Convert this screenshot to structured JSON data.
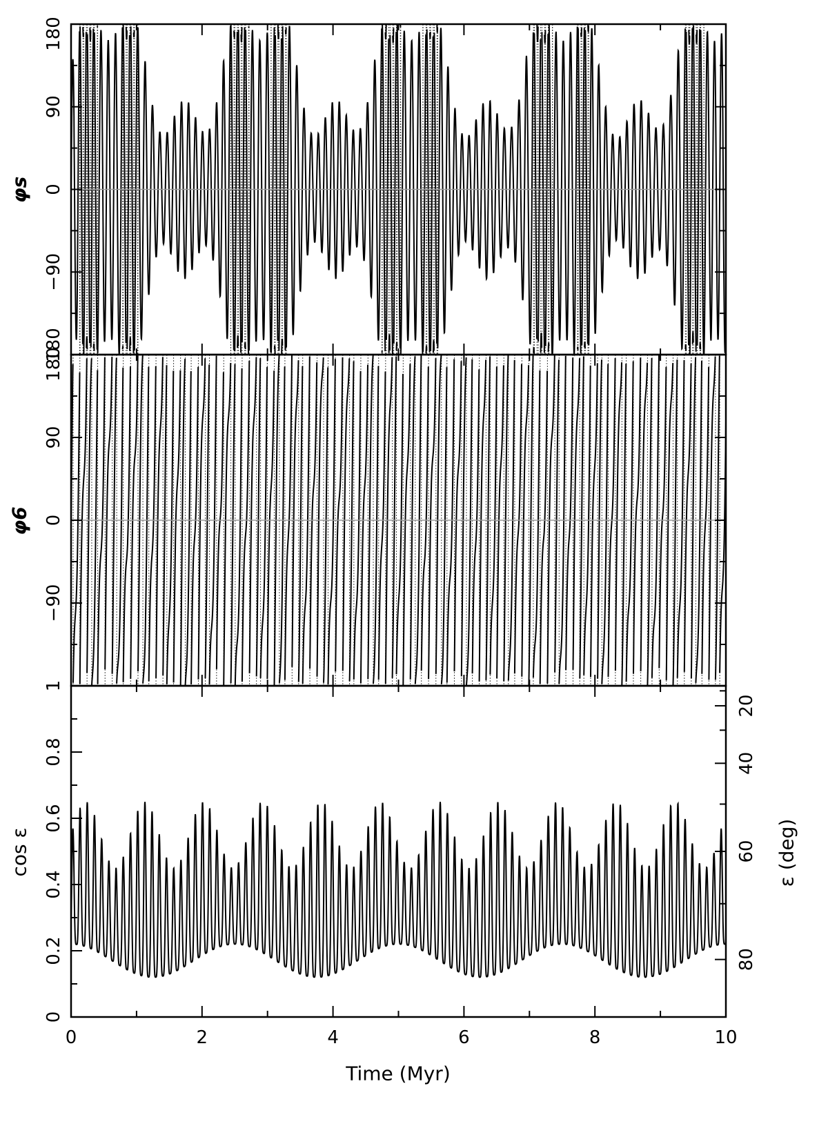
{
  "chart_data": [
    {
      "type": "line",
      "panel": "top",
      "ylabel": "φs",
      "xlim": [
        0,
        10
      ],
      "ylim": [
        -180,
        180
      ],
      "yticks": [
        {
          "value": 180,
          "label": "180"
        },
        {
          "value": 90,
          "label": "90"
        },
        {
          "value": 0,
          "label": "0"
        },
        {
          "value": -90,
          "label": "−90"
        },
        {
          "value": -180,
          "label": "180"
        }
      ],
      "reference_line": 0,
      "series_shape": {
        "period_myr": 0.11,
        "mean": 0,
        "amplitude": 130,
        "angle_wrap": true
      }
    },
    {
      "type": "line",
      "panel": "middle",
      "ylabel": "φ6",
      "xlim": [
        0,
        10
      ],
      "ylim": [
        -180,
        180
      ],
      "yticks": [
        {
          "value": 180,
          "label": "180"
        },
        {
          "value": 90,
          "label": "90"
        },
        {
          "value": 0,
          "label": "0"
        },
        {
          "value": -90,
          "label": "−90"
        }
      ],
      "reference_line": 0,
      "series_shape": {
        "period_myr": 0.095,
        "circulating": true
      }
    },
    {
      "type": "line",
      "panel": "bottom",
      "xlabel": "Time (Myr)",
      "ylabel": "cos ε",
      "ylabel_right": "ε (deg)",
      "xlim": [
        0,
        10
      ],
      "ylim": [
        0,
        1
      ],
      "xticks": [
        {
          "value": 0,
          "label": "0"
        },
        {
          "value": 2,
          "label": "2"
        },
        {
          "value": 4,
          "label": "4"
        },
        {
          "value": 6,
          "label": "6"
        },
        {
          "value": 8,
          "label": "8"
        },
        {
          "value": 10,
          "label": "10"
        }
      ],
      "yticks": [
        {
          "value": 0,
          "label": "0"
        },
        {
          "value": 0.2,
          "label": "0.2"
        },
        {
          "value": 0.4,
          "label": "0.4"
        },
        {
          "value": 0.6,
          "label": "0.6"
        },
        {
          "value": 0.8,
          "label": "0.8"
        },
        {
          "value": 1,
          "label": "1"
        }
      ],
      "yticks_right": [
        {
          "value": 20,
          "label": "20"
        },
        {
          "value": 40,
          "label": "40"
        },
        {
          "value": 60,
          "label": "60"
        },
        {
          "value": 80,
          "label": "80"
        }
      ],
      "series_shape": {
        "period_myr": 0.11,
        "min": 0.08,
        "max": 0.69
      }
    }
  ]
}
